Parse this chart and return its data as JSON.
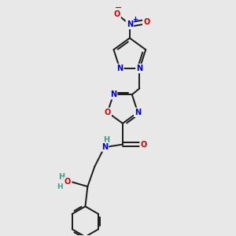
{
  "bg_color": "#e8e8e8",
  "bond_color": "#1a1a1a",
  "atom_colors": {
    "N": "#0000cc",
    "O": "#cc0000",
    "C": "#1a1a1a",
    "H": "#4a9a8a"
  },
  "figsize": [
    3.0,
    3.0
  ],
  "dpi": 100,
  "lw": 1.4
}
